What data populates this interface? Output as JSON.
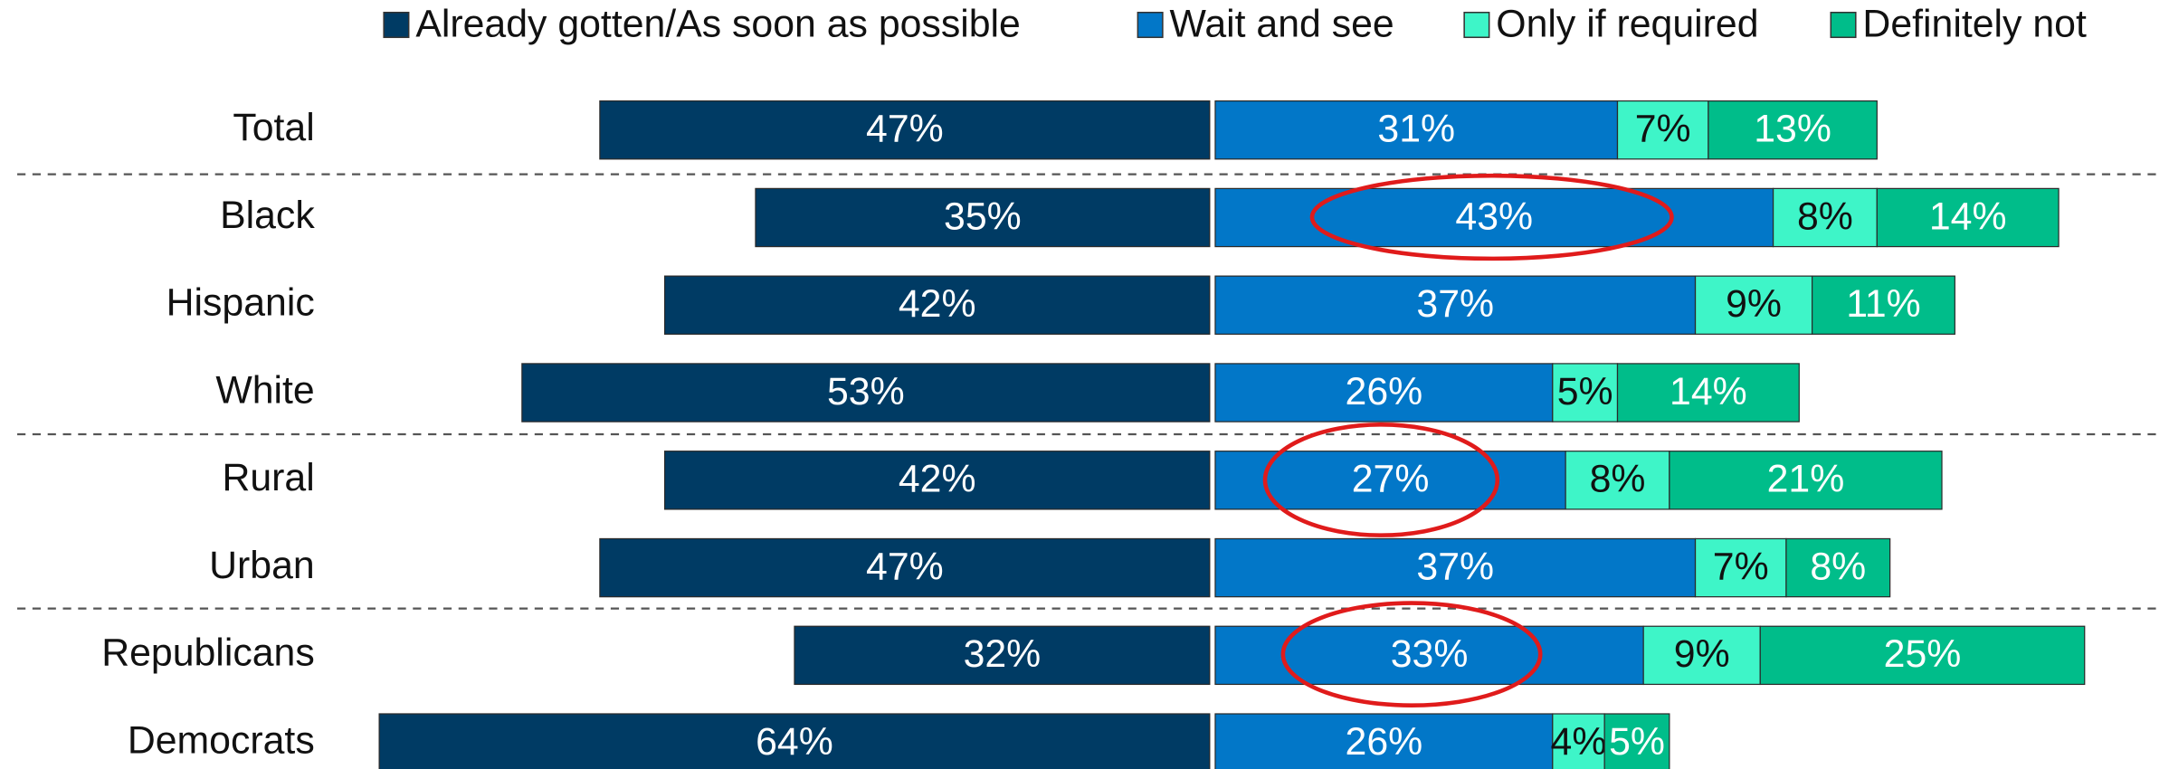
{
  "chart_data": {
    "type": "diverging_bar",
    "categories": [
      "Total",
      "Black",
      "Hispanic",
      "White",
      "Rural",
      "Urban",
      "Republicans",
      "Democrats"
    ],
    "series": [
      {
        "name": "Already gotten/As soon as possible",
        "color": "#003b64",
        "values": [
          47,
          35,
          42,
          53,
          42,
          47,
          32,
          64
        ],
        "value_labels": [
          "47%",
          "35%",
          "42%",
          "53%",
          "42%",
          "47%",
          "32%",
          "64%"
        ]
      },
      {
        "name": "Wait and see",
        "color": "#0277c8",
        "values": [
          31,
          43,
          37,
          26,
          27,
          37,
          33,
          26
        ],
        "value_labels": [
          "31%",
          "43%",
          "37%",
          "26%",
          "27%",
          "37%",
          "33%",
          "26%"
        ]
      },
      {
        "name": "Only if required",
        "color": "#3ef5c8",
        "values": [
          7,
          8,
          9,
          5,
          8,
          7,
          9,
          4
        ],
        "value_labels": [
          "7%",
          "8%",
          "9%",
          "5%",
          "8%",
          "7%",
          "9%",
          "4%"
        ]
      },
      {
        "name": "Definitely not",
        "color": "#00bd8a",
        "values": [
          13,
          14,
          11,
          14,
          21,
          8,
          25,
          5
        ],
        "value_labels": [
          "13%",
          "14%",
          "11%",
          "14%",
          "21%",
          "8%",
          "25%",
          "5%"
        ]
      }
    ]
  }
}
